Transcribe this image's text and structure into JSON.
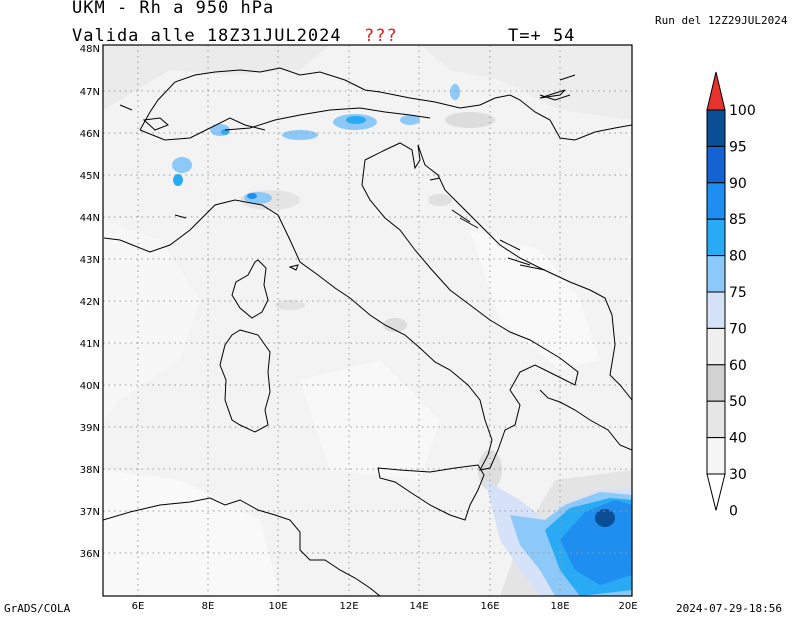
{
  "header": {
    "title": "UKM - Rh a 950 hPa",
    "valid": "Valida alle 18Z31JUL2024",
    "warning": "???",
    "timestep": "T=+ 54",
    "run": "Run del 12Z29JUL2024"
  },
  "footer": {
    "credit": "GrADS/COLA",
    "timestamp": "2024-07-29-18:56"
  },
  "map": {
    "lat_labels": [
      "48N",
      "47N",
      "46N",
      "45N",
      "44N",
      "43N",
      "42N",
      "41N",
      "40N",
      "39N",
      "38N",
      "37N",
      "36N"
    ],
    "lon_labels": [
      "6E",
      "8E",
      "10E",
      "12E",
      "14E",
      "16E",
      "18E",
      "20E"
    ]
  },
  "colorbar": {
    "labels": [
      "100",
      "95",
      "90",
      "85",
      "80",
      "75",
      "70",
      "60",
      "50",
      "40",
      "30",
      "0"
    ],
    "colors": [
      "#0a4f96",
      "#1463d2",
      "#1e8ef0",
      "#28aaf5",
      "#8cc8f8",
      "#d6e2f8",
      "#f0f0f0",
      "#d2d2d2",
      "#e6e6e6",
      "#f5f5f5",
      "#ffffff"
    ],
    "overflow_color": "#e8322d"
  }
}
